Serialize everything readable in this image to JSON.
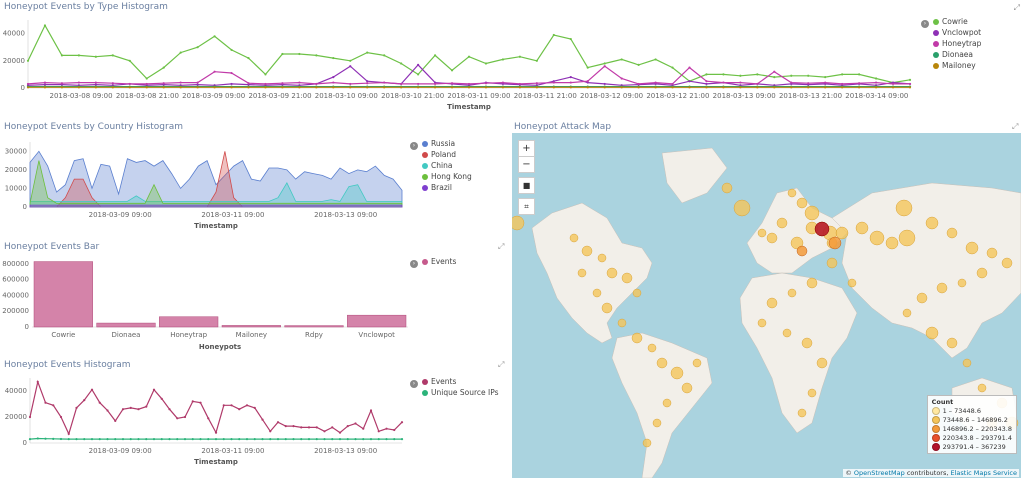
{
  "panels": {
    "type_hist": {
      "title": "Honeypot Events by Type Histogram",
      "xlabel": "Timestamp",
      "yticks": [
        "40000",
        "20000",
        "0"
      ],
      "xticks": [
        "2018-03-08 09:00",
        "2018-03-08 21:00",
        "2018-03-09 09:00",
        "2018-03-09 21:00",
        "2018-03-10 09:00",
        "2018-03-10 21:00",
        "2018-03-11 09:00",
        "2018-03-11 21:00",
        "2018-03-12 09:00",
        "2018-03-12 21:00",
        "2018-03-13 09:00",
        "2018-03-13 21:00",
        "2018-03-14 09:00"
      ],
      "legend": [
        {
          "label": "Cowrie",
          "color": "#6dc146"
        },
        {
          "label": "Vnclowpot",
          "color": "#8e30b5"
        },
        {
          "label": "Honeytrap",
          "color": "#c13aa8"
        },
        {
          "label": "Dionaea",
          "color": "#2aa06b"
        },
        {
          "label": "Mailoney",
          "color": "#b8860b"
        }
      ]
    },
    "country_hist": {
      "title": "Honeypot Events by Country Histogram",
      "xlabel": "Timestamp",
      "yticks": [
        "30000",
        "20000",
        "10000",
        "0"
      ],
      "xticks": [
        "2018-03-09 09:00",
        "2018-03-11 09:00",
        "2018-03-13 09:00"
      ],
      "legend": [
        {
          "label": "Russia",
          "color": "#5a7fcf"
        },
        {
          "label": "Poland",
          "color": "#d04a4a"
        },
        {
          "label": "China",
          "color": "#42c9c2"
        },
        {
          "label": "Hong Kong",
          "color": "#6cbf3c"
        },
        {
          "label": "Brazil",
          "color": "#7f3fcf"
        }
      ]
    },
    "bar": {
      "title": "Honeypot Events Bar",
      "xlabel": "Honeypots",
      "yticks": [
        "800000",
        "600000",
        "400000",
        "200000",
        "0"
      ],
      "legend": [
        {
          "label": "Events",
          "color": "#c65a8c"
        }
      ]
    },
    "events_hist": {
      "title": "Honeypot Events Histogram",
      "xlabel": "Timestamp",
      "yticks": [
        "40000",
        "20000",
        "0"
      ],
      "xticks": [
        "2018-03-09 09:00",
        "2018-03-11 09:00",
        "2018-03-13 09:00"
      ],
      "legend": [
        {
          "label": "Events",
          "color": "#b03a6a"
        },
        {
          "label": "Unique Source IPs",
          "color": "#2bb37a"
        }
      ]
    },
    "map": {
      "title": "Honeypot Attack Map",
      "controls": {
        "zoom_in": "+",
        "zoom_out": "−",
        "draw": "■",
        "fit": "⌗"
      },
      "legend_title": "Count",
      "legend": [
        {
          "label": "1 – 73448.6",
          "color": "#ffe8a0"
        },
        {
          "label": "73448.6 – 146896.2",
          "color": "#f4c55a"
        },
        {
          "label": "146896.2 – 220343.8",
          "color": "#f39a3a"
        },
        {
          "label": "220343.8 – 293791.4",
          "color": "#e8502a"
        },
        {
          "label": "293791.4 – 367239",
          "color": "#b3122a"
        }
      ],
      "attribution_prefix": "©",
      "attribution_osm": "OpenStreetMap",
      "attribution_mid": "contributors,",
      "attribution_ems": "Elastic Maps Service"
    }
  },
  "chart_data": [
    {
      "type": "line",
      "title": "Honeypot Events by Type Histogram",
      "xlabel": "Timestamp",
      "ylim": [
        0,
        50000
      ],
      "series": [
        {
          "name": "Cowrie",
          "values": [
            20000,
            46000,
            24000,
            24000,
            23000,
            24000,
            20000,
            7000,
            15000,
            26000,
            30000,
            38000,
            28000,
            22000,
            10000,
            25000,
            25000,
            24000,
            22000,
            20000,
            26000,
            24000,
            18000,
            10000,
            24000,
            13000,
            23000,
            18000,
            21000,
            23000,
            20000,
            39000,
            36000,
            15000,
            18000,
            21000,
            17000,
            21000,
            15000,
            5000,
            10000,
            10000,
            9000,
            10000,
            8000,
            9000,
            9000,
            8000,
            10000,
            10000,
            7000,
            4000,
            6000
          ]
        },
        {
          "name": "Vnclowpot",
          "values": [
            2000,
            2500,
            2500,
            2000,
            2500,
            2000,
            3000,
            2000,
            2500,
            2000,
            2500,
            2000,
            3000,
            2500,
            2000,
            2500,
            2000,
            3000,
            8000,
            16000,
            5000,
            4000,
            3000,
            17000,
            4000,
            3000,
            2000,
            4000,
            3000,
            2500,
            2000,
            5000,
            8000,
            4000,
            3000,
            2000,
            2500,
            3000,
            2000,
            5000,
            3000,
            4000,
            2000,
            3000,
            2000,
            3000,
            2500,
            3000,
            2000,
            3000,
            2000,
            4000,
            3000
          ]
        },
        {
          "name": "Honeytrap",
          "values": [
            3000,
            4000,
            3500,
            4000,
            4000,
            3500,
            3000,
            3000,
            3500,
            4000,
            4000,
            12000,
            11000,
            3500,
            3000,
            3500,
            4000,
            3000,
            4000,
            3000,
            3500,
            4000,
            3000,
            3000,
            3000,
            3500,
            3000,
            3500,
            4000,
            3000,
            3500,
            4000,
            4000,
            5000,
            16000,
            7000,
            3000,
            4000,
            3000,
            15000,
            5000,
            4000,
            4000,
            3000,
            12000,
            4000,
            3500,
            4000,
            3000,
            3500,
            4000,
            3000,
            3000
          ]
        },
        {
          "name": "Dionaea",
          "values": [
            1000,
            1000,
            1000,
            1000,
            1000,
            1000,
            1000,
            1000,
            1000,
            1000,
            1000,
            1000,
            1000,
            1000,
            1000,
            1000,
            1000,
            1000,
            1000,
            1000,
            1000,
            1000,
            1000,
            1000,
            1000,
            1000,
            1000,
            1000,
            1000,
            1000,
            1000,
            1000,
            1000,
            1000,
            1000,
            1000,
            1000,
            1000,
            1000,
            1000,
            1000,
            1000,
            1000,
            1000,
            1000,
            1000,
            1000,
            1000,
            1000,
            1000,
            1000,
            1000,
            1000
          ]
        },
        {
          "name": "Mailoney",
          "values": [
            500,
            500,
            500,
            500,
            500,
            500,
            500,
            500,
            500,
            500,
            500,
            500,
            500,
            500,
            500,
            500,
            500,
            500,
            500,
            500,
            500,
            500,
            500,
            500,
            500,
            500,
            500,
            500,
            500,
            500,
            500,
            500,
            500,
            500,
            500,
            500,
            500,
            500,
            500,
            500,
            500,
            500,
            500,
            500,
            500,
            500,
            500,
            500,
            500,
            500,
            500,
            500,
            500
          ]
        }
      ]
    },
    {
      "type": "area",
      "title": "Honeypot Events by Country Histogram",
      "xlabel": "Timestamp",
      "ylim": [
        0,
        35000
      ],
      "series": [
        {
          "name": "Russia",
          "values": [
            24000,
            30000,
            22000,
            8000,
            12000,
            25000,
            26000,
            10000,
            23000,
            22000,
            7000,
            26000,
            24000,
            25000,
            22000,
            25000,
            18000,
            10000,
            15000,
            22000,
            25000,
            12000,
            17000,
            22000,
            25000,
            15000,
            14000,
            21000,
            21000,
            20000,
            15000,
            19000,
            18000,
            17000,
            15000,
            21000,
            18000,
            20000,
            19000,
            22000,
            17000,
            15000,
            9000
          ]
        },
        {
          "name": "Poland",
          "values": [
            0,
            0,
            0,
            0,
            5000,
            15000,
            15000,
            5000,
            0,
            0,
            0,
            0,
            0,
            0,
            0,
            0,
            0,
            0,
            0,
            0,
            0,
            8000,
            30000,
            5000,
            0,
            0,
            0,
            0,
            0,
            0,
            0,
            0,
            0,
            0,
            0,
            0,
            0,
            0,
            0,
            0,
            0,
            0,
            0
          ]
        },
        {
          "name": "China",
          "values": [
            3000,
            3000,
            3000,
            3000,
            3000,
            3000,
            3000,
            3000,
            3000,
            3000,
            3000,
            3000,
            6000,
            3000,
            3000,
            3000,
            3000,
            3000,
            3000,
            3000,
            3000,
            3000,
            3000,
            3000,
            3000,
            3000,
            3000,
            3000,
            5000,
            13000,
            3000,
            3000,
            3000,
            3000,
            4000,
            3000,
            11000,
            12000,
            3000,
            3000,
            3000,
            3000,
            3000
          ]
        },
        {
          "name": "Hong Kong",
          "values": [
            2000,
            25000,
            5000,
            2000,
            2000,
            2000,
            2000,
            2000,
            2000,
            2000,
            2000,
            2000,
            2000,
            2000,
            12000,
            2000,
            2000,
            2000,
            2000,
            2000,
            2000,
            2000,
            2000,
            2000,
            2000,
            2000,
            2000,
            2000,
            2000,
            2000,
            2000,
            2000,
            2000,
            2000,
            2000,
            2000,
            2000,
            2000,
            2000,
            2000,
            2000,
            2000,
            2000
          ]
        },
        {
          "name": "Brazil",
          "values": [
            1000,
            1000,
            1000,
            1000,
            1000,
            1000,
            1000,
            1000,
            1000,
            1000,
            1000,
            1000,
            1000,
            1000,
            1000,
            1000,
            1000,
            1000,
            1000,
            1000,
            1000,
            1000,
            1000,
            1000,
            1000,
            1000,
            1000,
            1000,
            1000,
            1000,
            1000,
            1000,
            1000,
            1000,
            1000,
            1000,
            1000,
            1000,
            1000,
            1000,
            1000,
            1000,
            1000
          ]
        }
      ]
    },
    {
      "type": "bar",
      "title": "Honeypot Events Bar",
      "xlabel": "Honeypots",
      "categories": [
        "Cowrie",
        "Dionaea",
        "Honeytrap",
        "Mailoney",
        "Rdpy",
        "Vnclowpot"
      ],
      "values": [
        830000,
        50000,
        130000,
        20000,
        18000,
        150000
      ],
      "ylim": [
        0,
        850000
      ]
    },
    {
      "type": "line",
      "title": "Honeypot Events Histogram",
      "xlabel": "Timestamp",
      "ylim": [
        0,
        50000
      ],
      "series": [
        {
          "name": "Events",
          "values": [
            20000,
            47000,
            31000,
            29000,
            20000,
            7000,
            27000,
            33000,
            41000,
            31000,
            25000,
            17000,
            26000,
            27000,
            26000,
            28000,
            41000,
            34000,
            26000,
            19000,
            20000,
            32000,
            31000,
            19000,
            8000,
            29000,
            29000,
            26000,
            29000,
            27000,
            18000,
            9000,
            16000,
            13000,
            13000,
            12000,
            12000,
            12000,
            9000,
            12000,
            8000,
            13000,
            15000,
            11000,
            25000,
            9000,
            11000,
            10000,
            16000
          ]
        },
        {
          "name": "Unique Source IPs",
          "values": [
            3000,
            3500,
            3300,
            3200,
            3100,
            3000,
            3000,
            3000,
            3000,
            3000,
            3000,
            3000,
            3000,
            3000,
            3000,
            3000,
            3000,
            3000,
            3000,
            3000,
            3000,
            3000,
            3000,
            3000,
            3000,
            3000,
            3000,
            3000,
            3000,
            3000,
            3000,
            3000,
            3000,
            3000,
            3000,
            3000,
            3000,
            3000,
            3000,
            3000,
            3000,
            3000,
            3000,
            3000,
            3000,
            3000,
            3000,
            3000,
            3000
          ]
        }
      ]
    }
  ]
}
